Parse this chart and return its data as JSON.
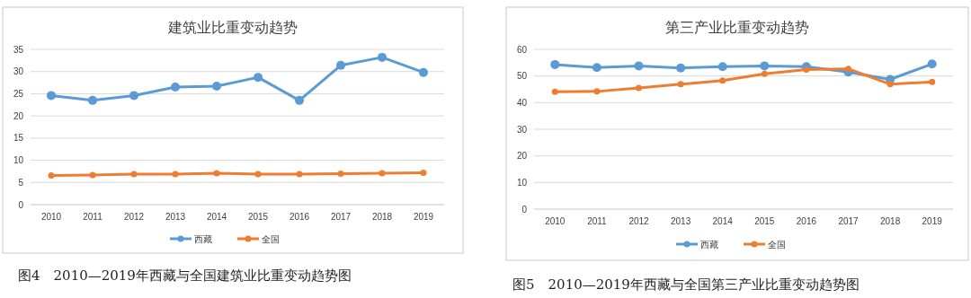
{
  "chart_data": [
    {
      "type": "line",
      "title": "建筑业比重变动趋势",
      "categories": [
        "2010",
        "2011",
        "2012",
        "2013",
        "2014",
        "2015",
        "2016",
        "2017",
        "2018",
        "2019"
      ],
      "series": [
        {
          "name": "西藏",
          "color": "#5b9bd5",
          "values": [
            24.6,
            23.5,
            24.6,
            26.5,
            26.7,
            28.7,
            23.5,
            31.4,
            33.2,
            29.8
          ]
        },
        {
          "name": "全国",
          "color": "#ed7d31",
          "values": [
            6.6,
            6.7,
            6.9,
            6.9,
            7.1,
            6.9,
            6.9,
            7.0,
            7.1,
            7.2
          ]
        }
      ],
      "ylim": [
        0,
        35
      ],
      "yticks": [
        0,
        5,
        10,
        15,
        20,
        25,
        30,
        35
      ],
      "grid": "y",
      "legend": "bottom",
      "marker": "circle",
      "line_style": "solid",
      "annotations": [
        "图4　2010—2019年西藏与全国建筑业比重变动趋势图"
      ]
    },
    {
      "type": "line",
      "title": "第三产业比重变动趋势",
      "categories": [
        "2010",
        "2011",
        "2012",
        "2013",
        "2014",
        "2015",
        "2016",
        "2017",
        "2018",
        "2019"
      ],
      "series": [
        {
          "name": "西藏",
          "color": "#5b9bd5",
          "values": [
            54.3,
            53.2,
            53.8,
            53.0,
            53.5,
            53.8,
            53.5,
            51.5,
            48.7,
            54.5
          ]
        },
        {
          "name": "全国",
          "color": "#ed7d31",
          "values": [
            44.1,
            44.2,
            45.5,
            46.9,
            48.3,
            50.8,
            52.4,
            52.7,
            46.9,
            47.8
          ]
        }
      ],
      "ylim": [
        0,
        60
      ],
      "yticks": [
        0,
        10,
        20,
        30,
        40,
        50,
        60
      ],
      "grid": "y",
      "legend": "bottom",
      "marker": "circle",
      "line_style": "solid",
      "annotations": [
        "图5　2010—2019年西藏与全国第三产业比重变动趋势图"
      ]
    }
  ]
}
